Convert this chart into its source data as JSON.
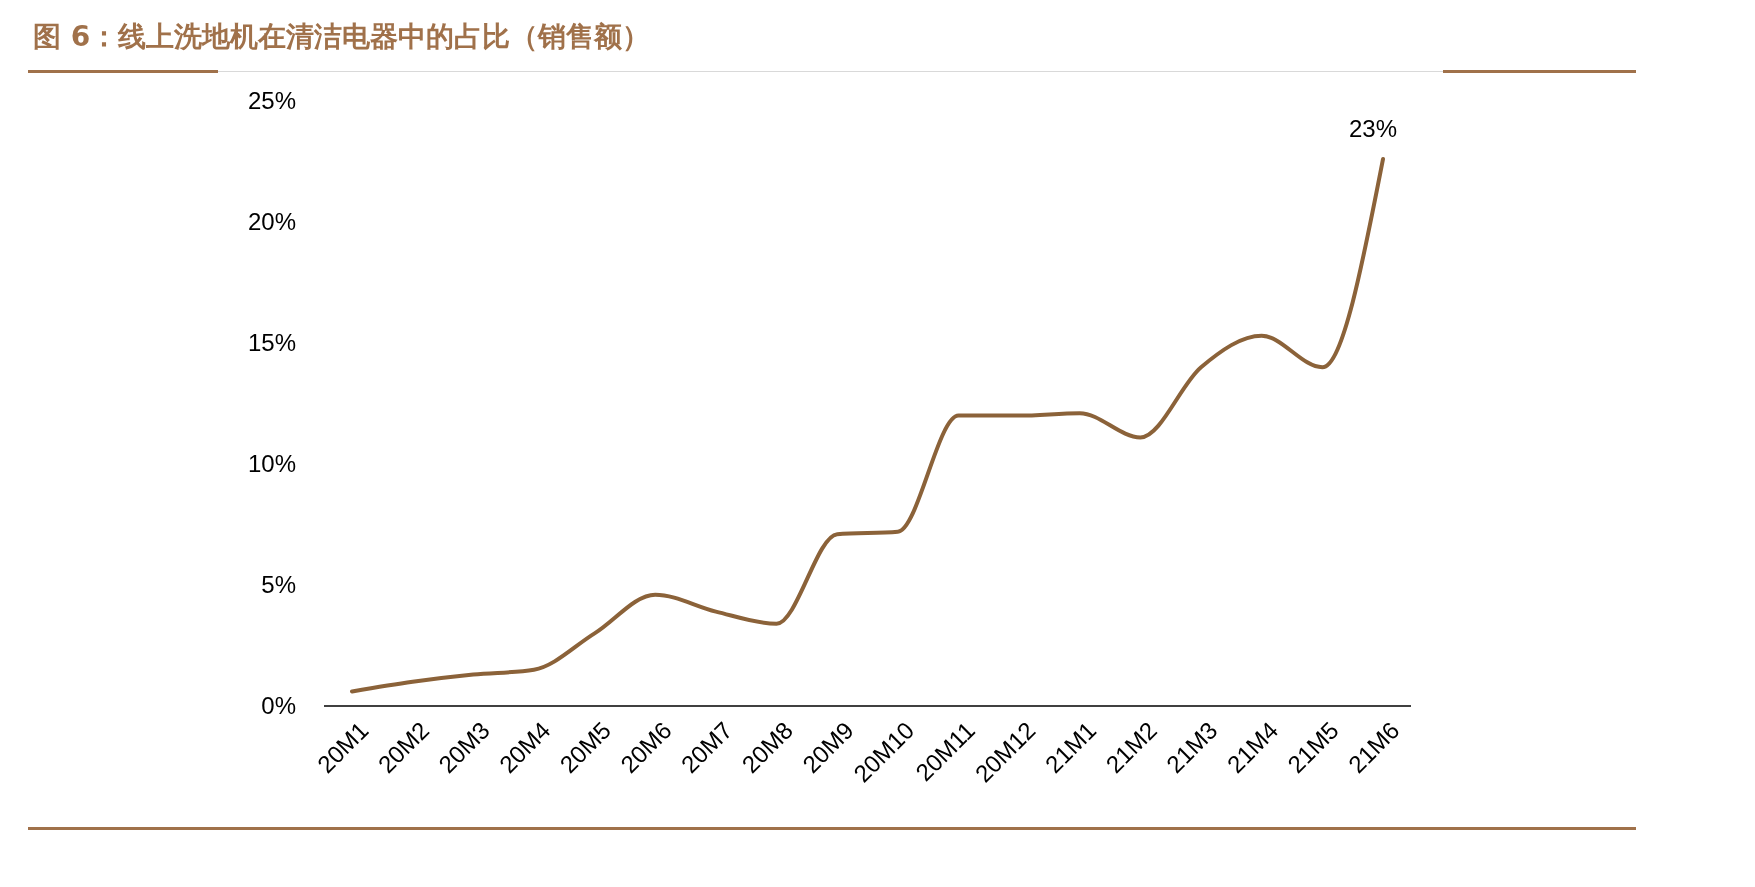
{
  "chart_data": {
    "type": "line",
    "title": "图 6：线上洗地机在清洁电器中的占比（销售额）",
    "categories": [
      "20M1",
      "20M2",
      "20M3",
      "20M4",
      "20M5",
      "20M6",
      "20M7",
      "20M8",
      "20M9",
      "20M10",
      "20M11",
      "20M12",
      "21M1",
      "21M2",
      "21M3",
      "21M4",
      "21M5",
      "21M6"
    ],
    "series": [
      {
        "color": "#8b6239",
        "values": [
          0.6,
          1.0,
          1.3,
          1.5,
          3.0,
          4.6,
          3.9,
          3.4,
          7.1,
          7.2,
          12.0,
          12.0,
          12.1,
          11.1,
          14.0,
          15.3,
          14.0,
          22.6
        ],
        "value_labels": [
          null,
          null,
          null,
          null,
          null,
          null,
          null,
          null,
          null,
          null,
          null,
          null,
          null,
          null,
          null,
          null,
          null,
          "23%"
        ]
      }
    ],
    "ylim": [
      0,
      25
    ],
    "yticks": [
      {
        "value": 0,
        "label": "0%"
      },
      {
        "value": 5,
        "label": "5%"
      },
      {
        "value": 10,
        "label": "10%"
      },
      {
        "value": 15,
        "label": "15%"
      },
      {
        "value": 20,
        "label": "20%"
      },
      {
        "value": 25,
        "label": "25%"
      }
    ],
    "marker": "none",
    "line_style": "solid"
  }
}
